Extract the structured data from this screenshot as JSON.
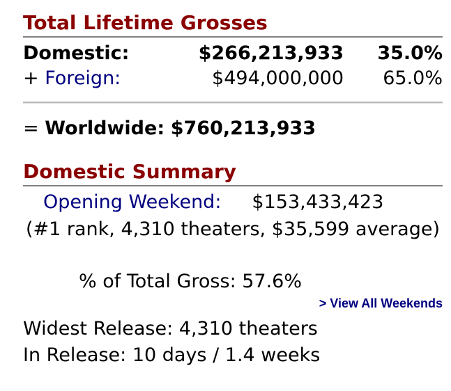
{
  "lifetime": {
    "title": "Total Lifetime Grosses",
    "domestic": {
      "label": "Domestic:",
      "amount": "$266,213,933",
      "pct": "35.0%"
    },
    "foreign": {
      "prefix": "+ ",
      "label": "Foreign:",
      "amount": "$494,000,000",
      "pct": "65.0%"
    },
    "worldwide": {
      "prefix": "= ",
      "label": "Worldwide:",
      "amount": "$760,213,933"
    }
  },
  "summary": {
    "title": "Domestic Summary",
    "opening_label": "Opening Weekend:",
    "opening_value": "$153,433,423",
    "opening_detail": "(#1 rank, 4,310 theaters, $35,599 average)",
    "pct_of_total": "% of Total Gross: 57.6%",
    "view_all_weekends": "> View All Weekends",
    "widest_release": "Widest Release: 4,310 theaters",
    "in_release": "In Release: 10 days / 1.4 weeks"
  },
  "colors": {
    "heading": "#8b0000",
    "link": "#000080",
    "rule": "#808080"
  }
}
